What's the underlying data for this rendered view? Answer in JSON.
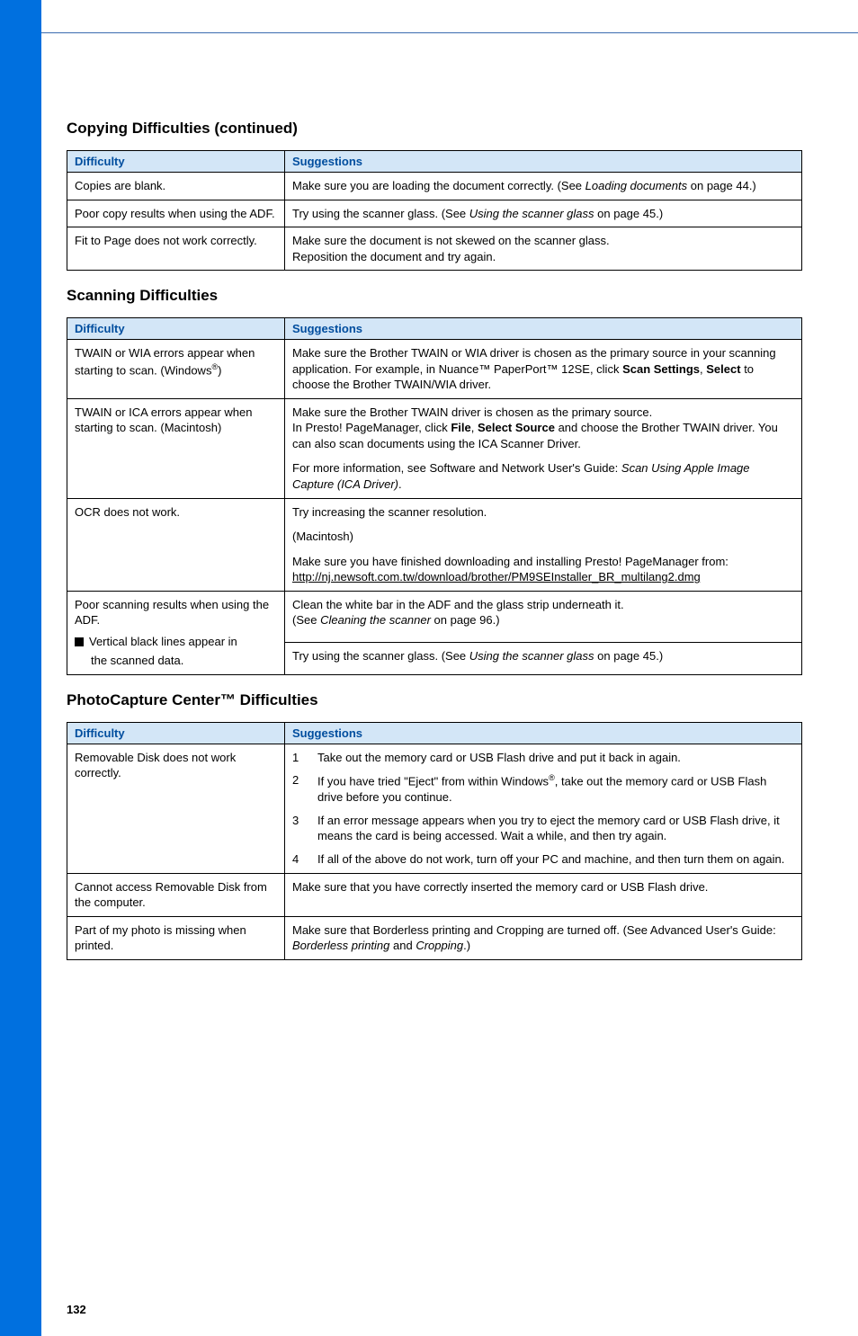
{
  "page_number": "132",
  "section1": {
    "title": "Copying Difficulties (continued)",
    "h1": "Difficulty",
    "h2": "Suggestions",
    "rows": [
      {
        "d": "Copies are blank.",
        "s": "Make sure you are loading the document correctly. (See <span class='italic'>Loading documents</span> on page 44.)"
      },
      {
        "d": "Poor copy results when using the ADF.",
        "s": "Try using the scanner glass. (See <span class='italic'>Using the scanner glass</span> on page 45.)"
      },
      {
        "d": "Fit to Page does not work correctly.",
        "s": "Make sure the document is not skewed on the scanner glass.<br>Reposition the document and try again."
      }
    ]
  },
  "section2": {
    "title": "Scanning Difficulties",
    "h1": "Difficulty",
    "h2": "Suggestions",
    "rows": [
      {
        "d": "TWAIN or WIA errors appear when starting to scan. (Windows<sup>®</sup>)",
        "s": "Make sure the Brother TWAIN or WIA driver is chosen as the primary source in your scanning application. For example, in Nuance™ PaperPort™ 12SE, click <b>Scan Settings</b>, <b>Select</b> to choose the Brother TWAIN/WIA driver."
      },
      {
        "d": "TWAIN or ICA errors appear when starting to scan. (Macintosh)",
        "s": "<div class='para'>Make sure the Brother TWAIN driver is chosen as the primary source.<br>In Presto! PageManager, click <b>File</b>, <b>Select Source</b> and choose the Brother TWAIN driver. You can also scan documents using the ICA Scanner Driver.</div><div class='para'>For more information, see Software and Network User's Guide: <span class='italic'>Scan Using Apple Image Capture (ICA Driver)</span>.</div>"
      },
      {
        "d": "OCR does not work.",
        "s": "<div class='para'>Try increasing the scanner resolution.</div><div class='para'>(Macintosh)</div><div class='para'>Make sure you have finished downloading and installing Presto! PageManager from:<br><span class='link'>http://nj.newsoft.com.tw/download/brother/PM9SEInstaller_BR_multilang2.dmg</span></div>"
      }
    ],
    "split_row": {
      "d_top": "Poor scanning results when using the ADF.",
      "d_bottom": "<span class='square'></span>Vertical black lines appear in <span class='indent'>the scanned data.</span>",
      "s_top": "Clean the white bar in the ADF and the glass strip underneath it.<br>(See <span class='italic'>Cleaning the scanner</span> on page 96.)",
      "s_bottom": "Try using the scanner glass. (See <span class='italic'>Using the scanner glass</span> on page 45.)"
    }
  },
  "section3": {
    "title": "PhotoCapture Center™ Difficulties",
    "h1": "Difficulty",
    "h2": "Suggestions",
    "rows": [
      {
        "d": "Removable Disk does not work correctly.",
        "s": "<div class='list-item'><span class='list-num'>1</span><span>Take out the memory card or USB Flash drive and put it back in again.</span></div><div class='list-item'><span class='list-num'>2</span><span>If you have tried \"Eject\" from within Windows<sup>®</sup>, take out the memory card or USB Flash drive before you continue.</span></div><div class='list-item'><span class='list-num'>3</span><span>If an error message appears when you try to eject the memory card or USB Flash drive, it means the card is being accessed. Wait a while, and then try again.</span></div><div class='list-item'><span class='list-num'>4</span><span>If all of the above do not work, turn off your PC and machine, and then turn them on again.</span></div>"
      },
      {
        "d": "Cannot access Removable Disk from the computer.",
        "s": "Make sure that you have correctly inserted the memory card or USB Flash drive."
      },
      {
        "d": "Part of my photo is missing when printed.",
        "s": "Make sure that Borderless printing and Cropping are turned off. (See Advanced User's Guide: <span class='italic'>Borderless printing</span> and <span class='italic'>Cropping</span>.)"
      }
    ]
  }
}
